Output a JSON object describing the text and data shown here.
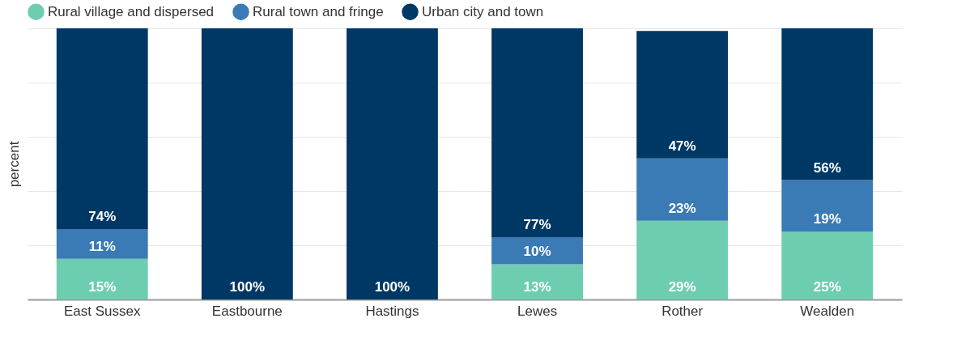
{
  "chart_data": {
    "type": "bar",
    "stacked": true,
    "ylabel": "percent",
    "categories": [
      "East Sussex",
      "Eastbourne",
      "Hastings",
      "Lewes",
      "Rother",
      "Wealden"
    ],
    "series": [
      {
        "name": "Rural village and dispersed",
        "color": "#6dcdb0",
        "values": [
          15,
          0,
          0,
          13,
          29,
          25
        ],
        "value_labels": [
          "15%",
          null,
          null,
          "13%",
          "29%",
          "25%"
        ]
      },
      {
        "name": "Rural town and fringe",
        "color": "#3a7ab5",
        "values": [
          11,
          0,
          0,
          10,
          23,
          19
        ],
        "value_labels": [
          "11%",
          null,
          null,
          "10%",
          "23%",
          "19%"
        ]
      },
      {
        "name": "Urban city and town",
        "color": "#003865",
        "values": [
          74,
          100,
          100,
          77,
          47,
          56
        ],
        "value_labels": [
          "74%",
          "100%",
          "100%",
          "77%",
          "47%",
          "56%"
        ]
      }
    ],
    "ylim": [
      0,
      100
    ],
    "yticks": [
      {
        "value": 0,
        "label": null
      },
      {
        "value": 20,
        "label": null
      },
      {
        "value": 40,
        "label": null
      },
      {
        "value": 60,
        "label": null
      },
      {
        "value": 80,
        "label": null
      },
      {
        "value": 100,
        "label": null
      }
    ],
    "grid": "y",
    "tick_labels": "x",
    "legend": "top"
  }
}
